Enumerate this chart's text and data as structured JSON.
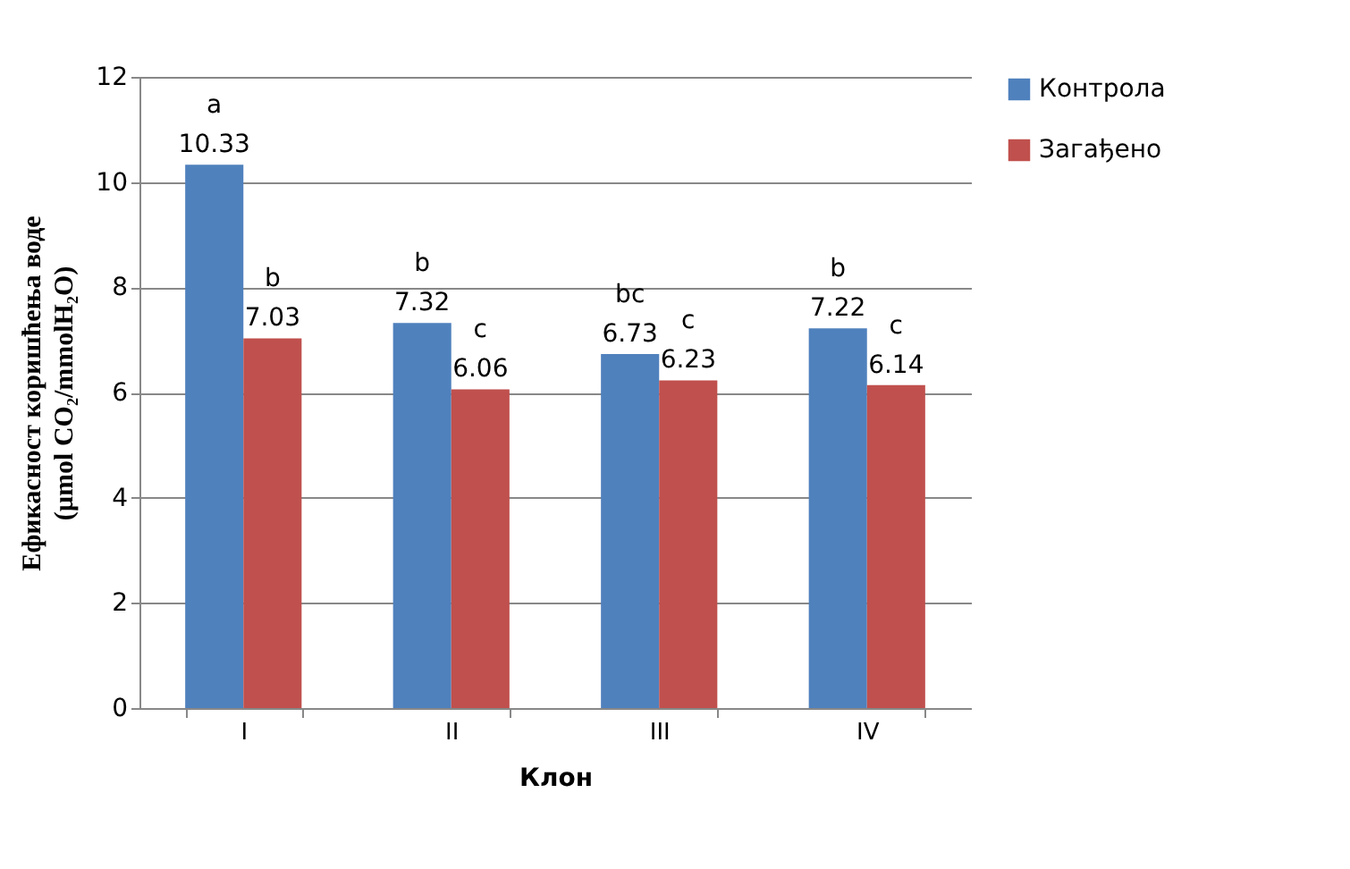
{
  "chart_data": {
    "type": "bar",
    "xlabel": "Клон",
    "ylabel": "Ефикасност коришћења воде\n(µmol CO₂/mmolH₂O)",
    "categories": [
      "I",
      "II",
      "III",
      "IV"
    ],
    "series": [
      {
        "name": "Контрола",
        "color": "#4f81bd",
        "values": [
          10.33,
          7.32,
          6.73,
          7.22
        ],
        "value_labels": [
          "a\n10.33",
          "b\n7.32",
          "bc\n6.73",
          "b\n7.22"
        ]
      },
      {
        "name": "Загађено",
        "color": "#c0504d",
        "values": [
          7.03,
          6.06,
          6.23,
          6.14
        ],
        "value_labels": [
          "b\n7.03",
          "c\n6.06",
          "c\n6.23",
          "c\n6.14"
        ]
      }
    ],
    "ylim": [
      0,
      12
    ],
    "yticks": [
      0,
      2,
      4,
      6,
      8,
      10,
      12
    ],
    "grid": "y",
    "legend": "right"
  }
}
